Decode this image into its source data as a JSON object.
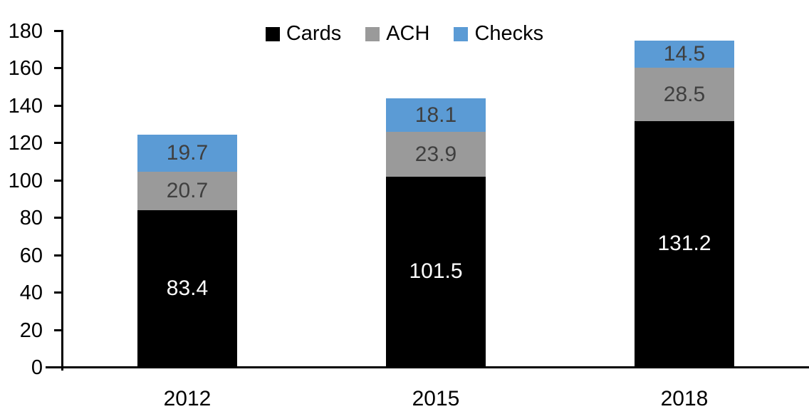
{
  "chart_data": {
    "type": "bar",
    "stacked": true,
    "title": "",
    "xlabel": "",
    "ylabel": "",
    "categories": [
      "2012",
      "2015",
      "2018"
    ],
    "series": [
      {
        "name": "Cards",
        "color": "#000000",
        "label_color": "#FFFFFF",
        "values": [
          83.4,
          101.5,
          131.2
        ]
      },
      {
        "name": "ACH",
        "color": "#9A9A9A",
        "label_color": "#3F3F3F",
        "values": [
          20.7,
          23.9,
          28.5
        ]
      },
      {
        "name": "Checks",
        "color": "#5B9BD5",
        "label_color": "#3F3F3F",
        "values": [
          19.7,
          18.1,
          14.5
        ]
      }
    ],
    "ylim": [
      0,
      180
    ],
    "yticks": [
      0,
      20,
      40,
      60,
      80,
      100,
      120,
      140,
      160,
      180
    ],
    "legend_position": "top-center",
    "grid": false,
    "axis_color": "#000000",
    "background_color": "#FFFFFF"
  }
}
